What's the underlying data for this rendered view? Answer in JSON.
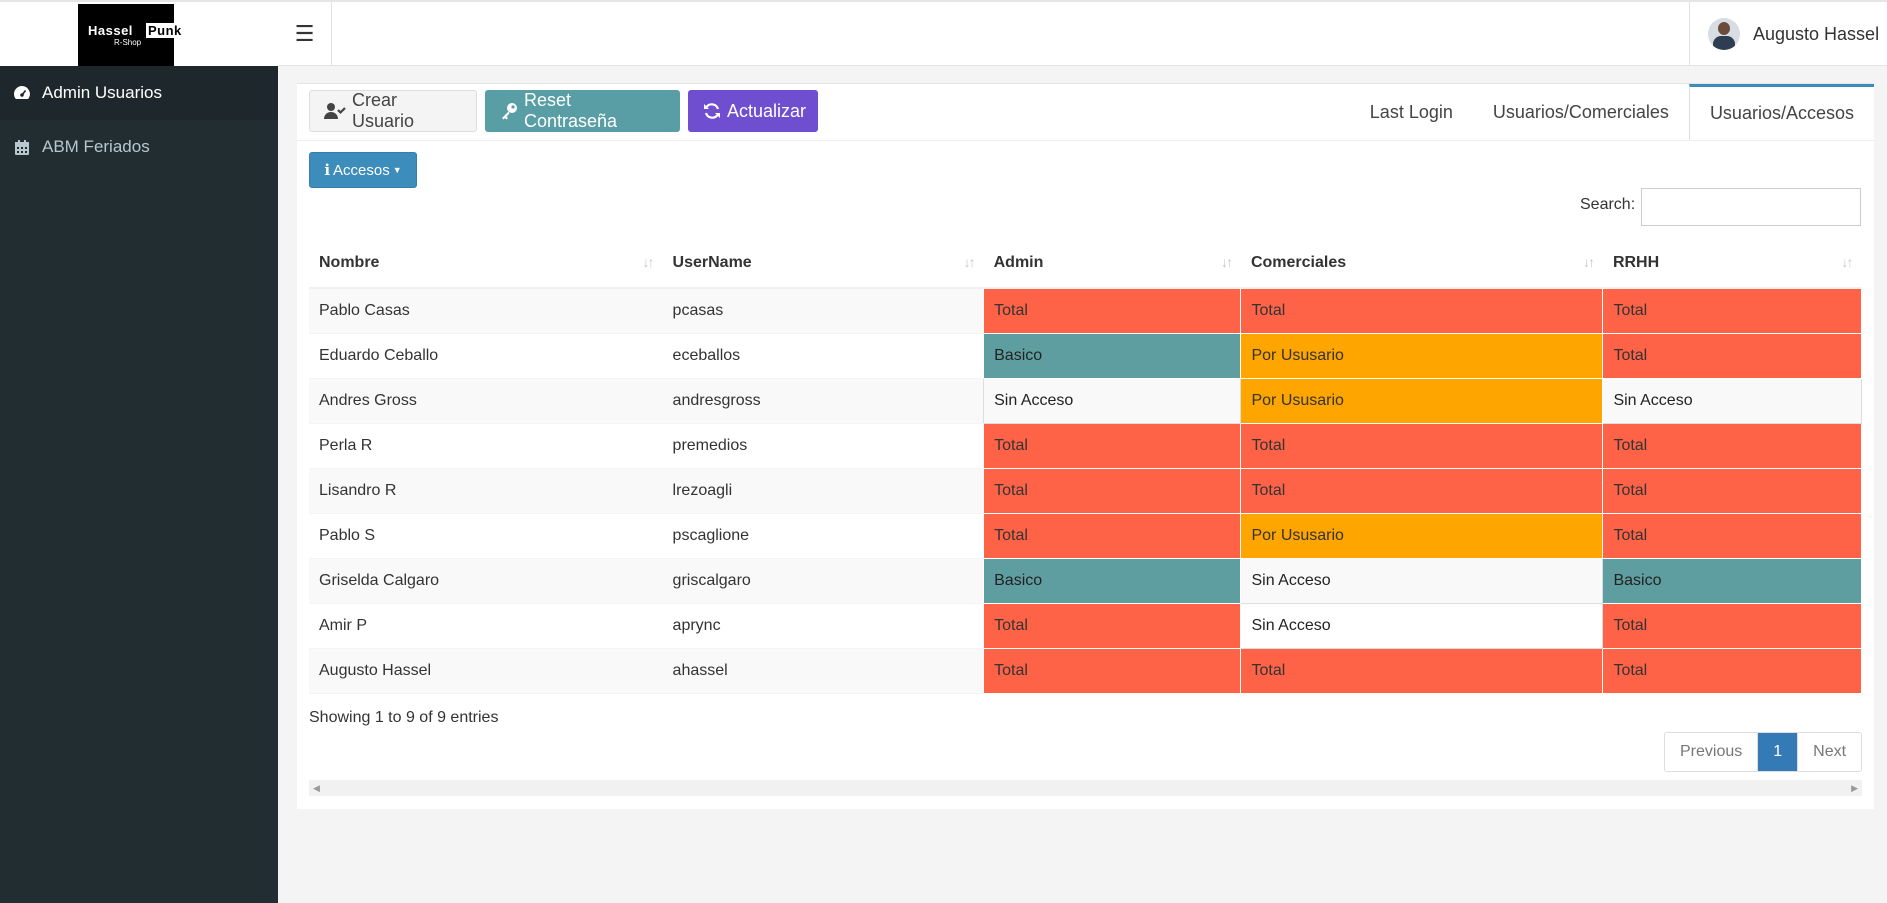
{
  "header": {
    "logo_line1": "Hassel",
    "logo_line1b": "Punk",
    "logo_line2": "R-Shop",
    "menu_icon": "hamburger-icon",
    "user_name": "Augusto Hassel"
  },
  "sidebar": {
    "items": [
      {
        "label": "Admin Usuarios",
        "icon": "dashboard-icon"
      },
      {
        "label": "ABM Feriados",
        "icon": "calendar-icon"
      }
    ]
  },
  "toolbar": {
    "crear_label": "Crear Usuario",
    "reset_label": "Reset Contraseña",
    "actualizar_label": "Actualizar",
    "accesos_label": "Accesos"
  },
  "tabs": [
    {
      "label": "Last Login"
    },
    {
      "label": "Usuarios/Comerciales"
    },
    {
      "label": "Usuarios/Accesos"
    }
  ],
  "search": {
    "label": "Search:",
    "placeholder": ""
  },
  "table": {
    "headers": [
      "Nombre",
      "UserName",
      "Admin",
      "Comerciales",
      "RRHH"
    ],
    "rows": [
      [
        "Pablo Casas",
        "pcasas",
        "Total",
        "Total",
        "Total"
      ],
      [
        "Eduardo Ceballo",
        "eceballos",
        "Basico",
        "Por Ususario",
        "Total"
      ],
      [
        "Andres Gross",
        "andresgross",
        "Sin Acceso",
        "Por Ususario",
        "Sin Acceso"
      ],
      [
        "Perla R",
        "premedios",
        "Total",
        "Total",
        "Total"
      ],
      [
        "Lisandro R",
        "lrezoagli",
        "Total",
        "Total",
        "Total"
      ],
      [
        "Pablo S",
        "pscaglione",
        "Total",
        "Por Ususario",
        "Total"
      ],
      [
        "Griselda Calgaro",
        "griscalgaro",
        "Basico",
        "Sin Acceso",
        "Basico"
      ],
      [
        "Amir P",
        "aprync",
        "Total",
        "Sin Acceso",
        "Total"
      ],
      [
        "Augusto Hassel",
        "ahassel",
        "Total",
        "Total",
        "Total"
      ]
    ]
  },
  "colors": {
    "Total": "#ff6347",
    "Basico": "#5f9ea0",
    "Por Ususario": "#ffa500",
    "Sin Acceso": "#f9f9f9"
  },
  "footer": {
    "info": "Showing 1 to 9 of 9 entries",
    "prev": "Previous",
    "page": "1",
    "next": "Next"
  }
}
